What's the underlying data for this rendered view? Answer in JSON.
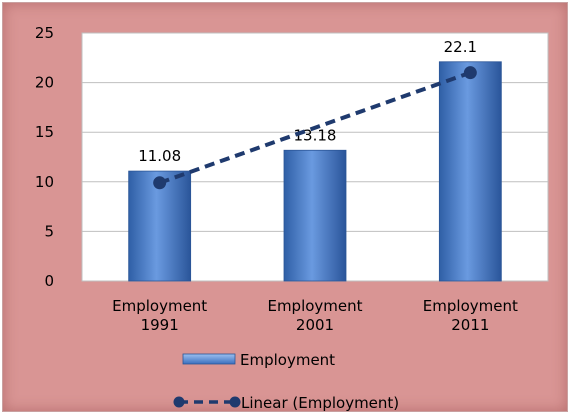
{
  "chart_data": {
    "type": "bar",
    "categories": [
      [
        "Employment",
        "1991"
      ],
      [
        "Employment",
        "2001"
      ],
      [
        "Employment",
        "2011"
      ]
    ],
    "series": [
      {
        "name": "Employment",
        "values": [
          11.08,
          13.18,
          22.1
        ]
      }
    ],
    "data_labels": [
      "11.08",
      "13.18",
      "22.1"
    ],
    "trendline": {
      "name": "Linear (Employment)",
      "values": [
        9.9,
        15.4,
        21.0
      ]
    },
    "ylim": [
      0,
      25
    ],
    "yticks": [
      0,
      5,
      10,
      15,
      20,
      25
    ],
    "grid": true,
    "legend_position": "bottom",
    "colors": {
      "background": "#d99594",
      "plot_area": "#ffffff",
      "bar": "#4a7fc9",
      "trendline": "#1f3a6e",
      "grid": "#bfbfbf"
    }
  }
}
